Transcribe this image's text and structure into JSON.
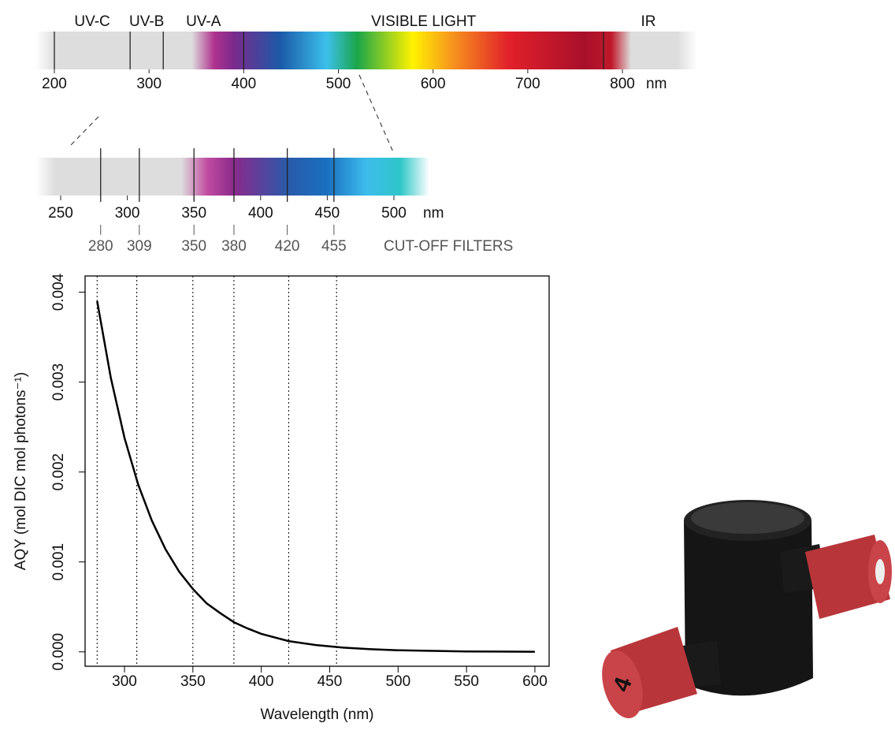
{
  "spectrum": {
    "bands": [
      "UV-C",
      "UV-B",
      "UV-A",
      "VISIBLE LIGHT",
      "IR"
    ],
    "boundaries": [
      200,
      280,
      315,
      400,
      780
    ],
    "ticks": [
      200,
      300,
      400,
      500,
      600,
      700,
      800
    ],
    "unit": "nm"
  },
  "zoom": {
    "ticks": [
      250,
      300,
      350,
      400,
      450,
      500
    ],
    "unit": "nm"
  },
  "cutoff_filters": {
    "label": "CUT-OFF FILTERS",
    "values": [
      280,
      309,
      350,
      380,
      420,
      455
    ]
  },
  "chart_data": {
    "type": "line",
    "xlabel": "Wavelength (nm)",
    "ylabel": "AQY (mol DIC mol photons⁻¹)",
    "x": [
      280,
      290,
      300,
      310,
      320,
      330,
      340,
      350,
      360,
      370,
      380,
      390,
      400,
      420,
      440,
      460,
      480,
      500,
      550,
      600
    ],
    "values": [
      0.0039,
      0.00305,
      0.00238,
      0.00186,
      0.00146,
      0.00114,
      0.00089,
      0.0007,
      0.00054,
      0.00043,
      0.00033,
      0.00026,
      0.0002,
      0.00012,
      7.6e-05,
      4.7e-05,
      2.9e-05,
      1.8e-05,
      5e-06,
      1e-06
    ],
    "color": "#000000",
    "xlim": [
      271.2,
      610.4
    ],
    "xticks": [
      300,
      350,
      400,
      450,
      500,
      550,
      600
    ],
    "ylim": [
      -0.00016,
      0.00418
    ],
    "yticks": [
      {
        "value": 0,
        "label": "0.000"
      },
      {
        "value": 0.001,
        "label": "0.001"
      },
      {
        "value": 0.002,
        "label": "0.002"
      },
      {
        "value": 0.003,
        "label": "0.003"
      },
      {
        "value": 0.004,
        "label": "0.004"
      }
    ]
  },
  "photo": {
    "label": "4"
  }
}
